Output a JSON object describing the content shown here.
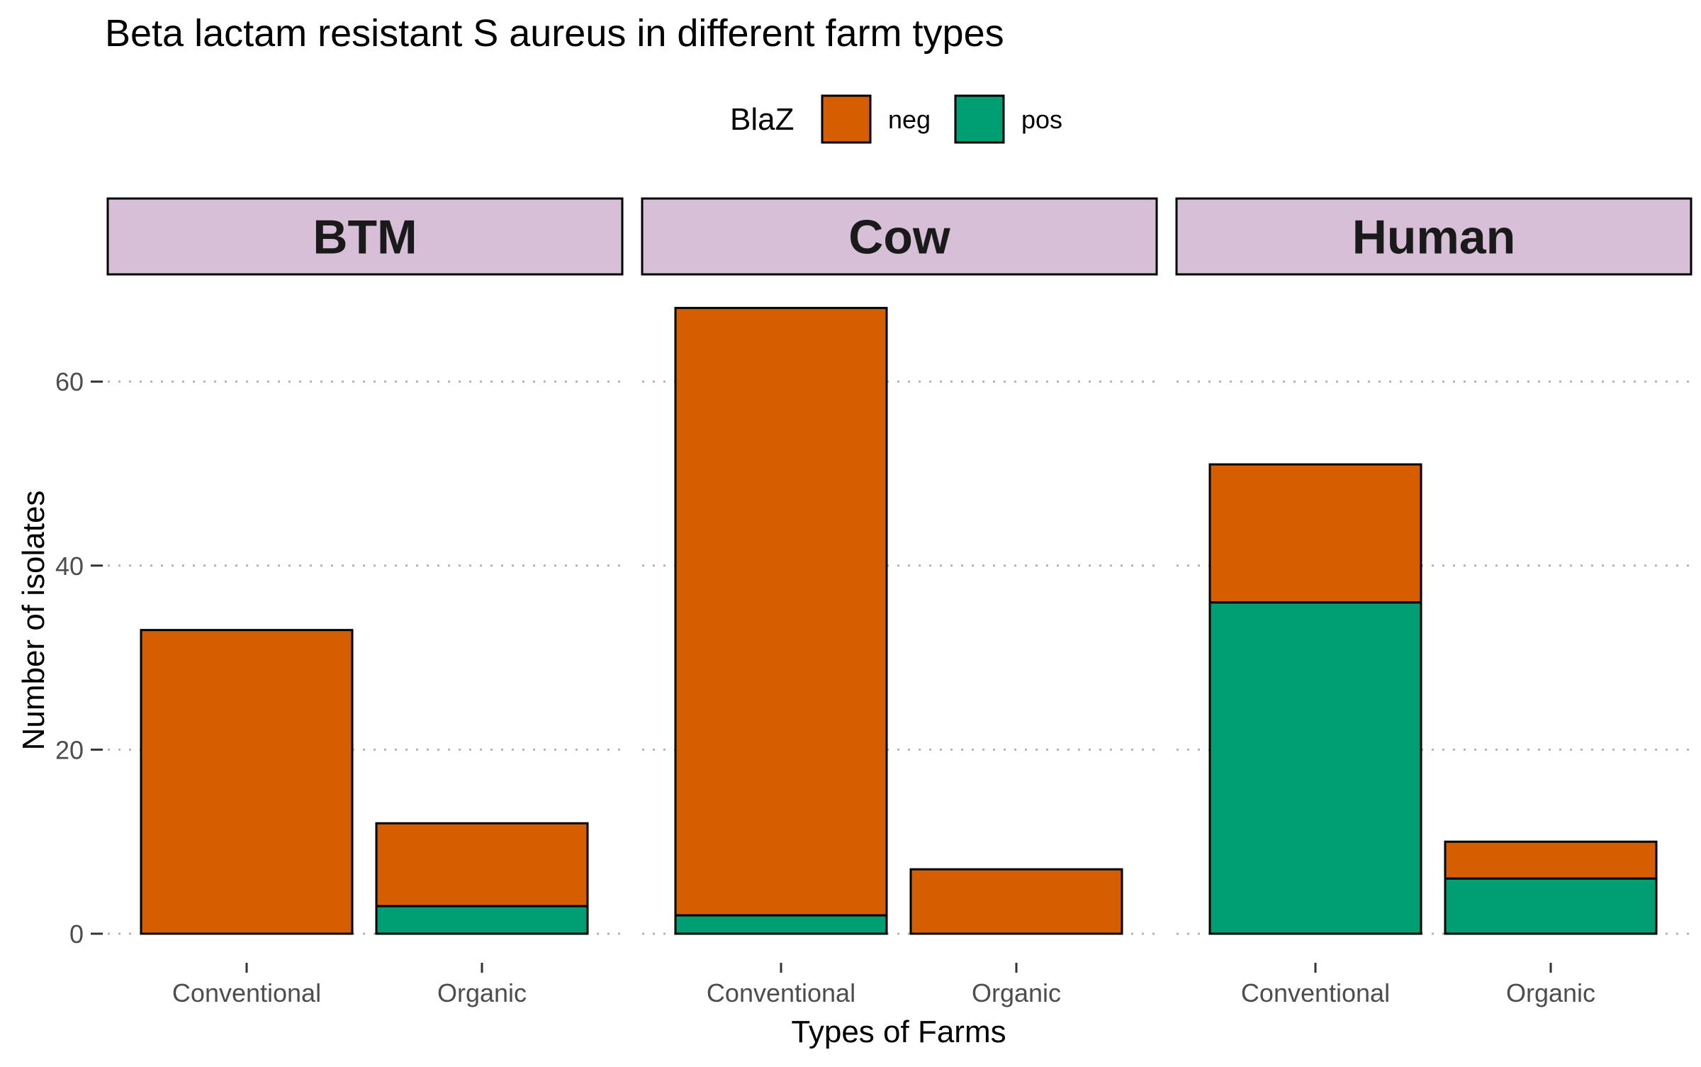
{
  "chart_data": {
    "type": "bar",
    "stacked": true,
    "title": "Beta lactam resistant S aureus in different farm types",
    "xlabel": "Types of Farms",
    "ylabel": "Number of isolates",
    "legend": {
      "title": "BlaZ",
      "position": "top",
      "entries": [
        "neg",
        "pos"
      ]
    },
    "colors": {
      "neg": "#D55E00",
      "pos": "#009E73",
      "strip_fill": "#D8BFD8",
      "grid": "#b3b3b3",
      "bar_outline": "#000000"
    },
    "ylim": [
      0,
      70
    ],
    "yticks": [
      0,
      20,
      40,
      60
    ],
    "grid": "horizontal-dotted",
    "categories": [
      "Conventional",
      "Organic"
    ],
    "panels": [
      {
        "name": "BTM",
        "series": [
          {
            "name": "neg",
            "values": [
              33,
              9
            ]
          },
          {
            "name": "pos",
            "values": [
              0,
              3
            ]
          }
        ]
      },
      {
        "name": "Cow",
        "series": [
          {
            "name": "neg",
            "values": [
              66,
              7
            ]
          },
          {
            "name": "pos",
            "values": [
              2,
              0
            ]
          }
        ]
      },
      {
        "name": "Human",
        "series": [
          {
            "name": "neg",
            "values": [
              15,
              4
            ]
          },
          {
            "name": "pos",
            "values": [
              36,
              6
            ]
          }
        ]
      }
    ]
  }
}
